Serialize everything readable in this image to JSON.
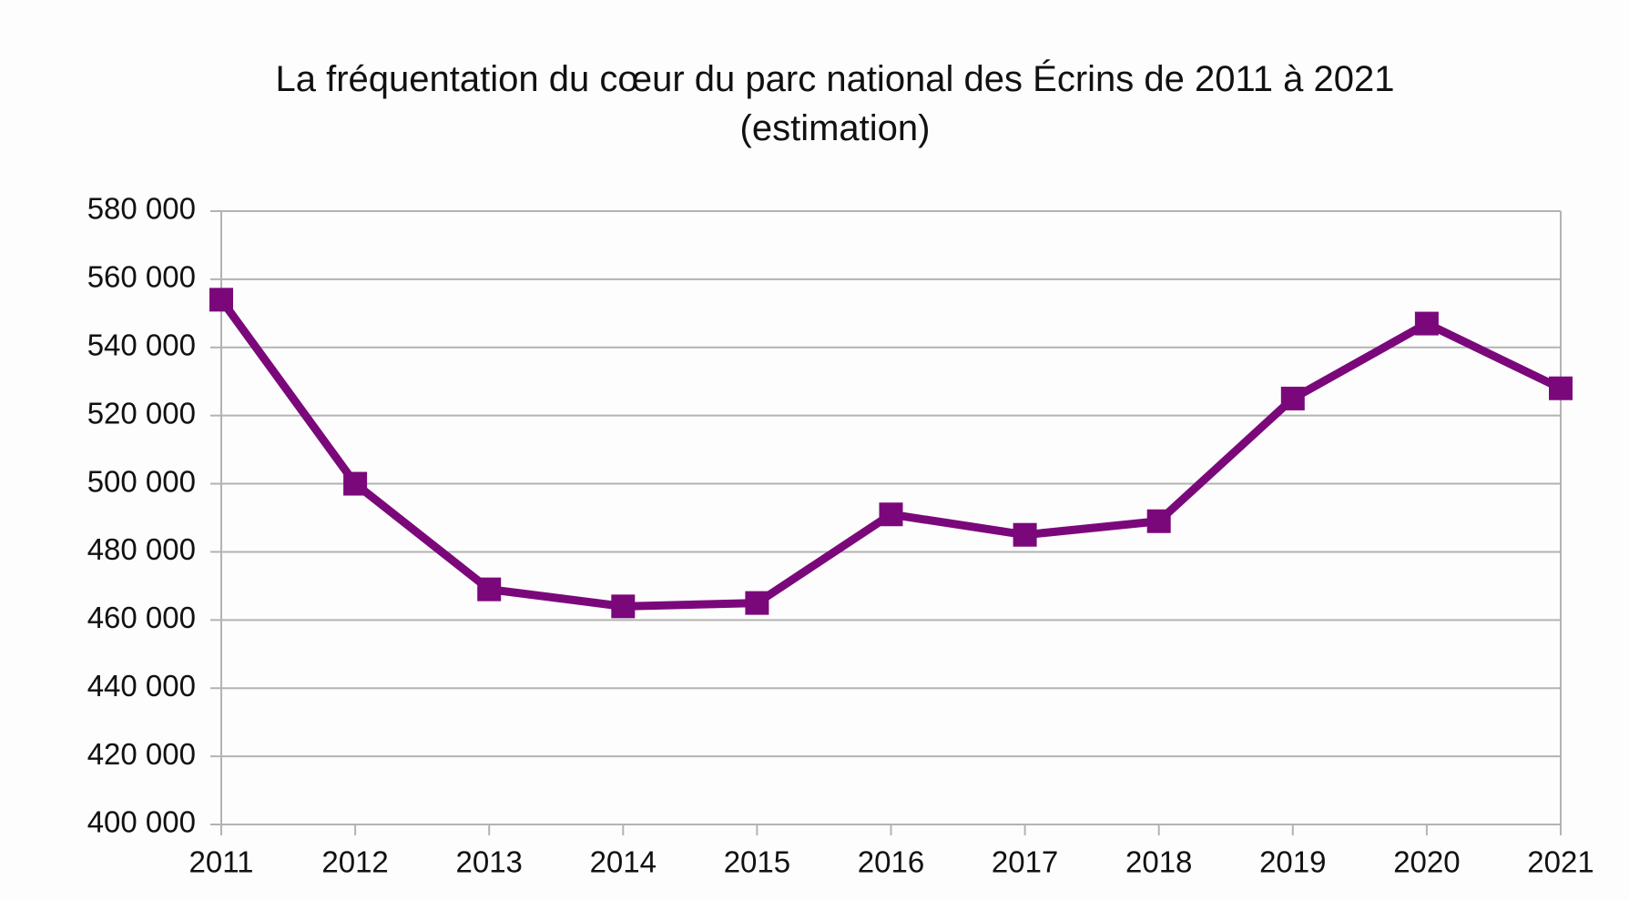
{
  "chart_data": {
    "type": "line",
    "title": "La fréquentation du cœur du parc national des Écrins de 2011 à 2021 (estimation)",
    "categories": [
      "2011",
      "2012",
      "2013",
      "2014",
      "2015",
      "2016",
      "2017",
      "2018",
      "2019",
      "2020",
      "2021"
    ],
    "values": [
      554000,
      500000,
      469000,
      464000,
      465000,
      491000,
      485000,
      489000,
      525000,
      547000,
      528000
    ],
    "color": "#7b087b",
    "ylim": [
      400000,
      580000
    ],
    "yticks": [
      {
        "value": 400000,
        "label": "400 000"
      },
      {
        "value": 420000,
        "label": "420 000"
      },
      {
        "value": 440000,
        "label": "440 000"
      },
      {
        "value": 460000,
        "label": "460 000"
      },
      {
        "value": 480000,
        "label": "480 000"
      },
      {
        "value": 500000,
        "label": "500 000"
      },
      {
        "value": 520000,
        "label": "520 000"
      },
      {
        "value": 540000,
        "label": "540 000"
      },
      {
        "value": 560000,
        "label": "560 000"
      },
      {
        "value": 580000,
        "label": "580 000"
      }
    ],
    "grid": true
  }
}
